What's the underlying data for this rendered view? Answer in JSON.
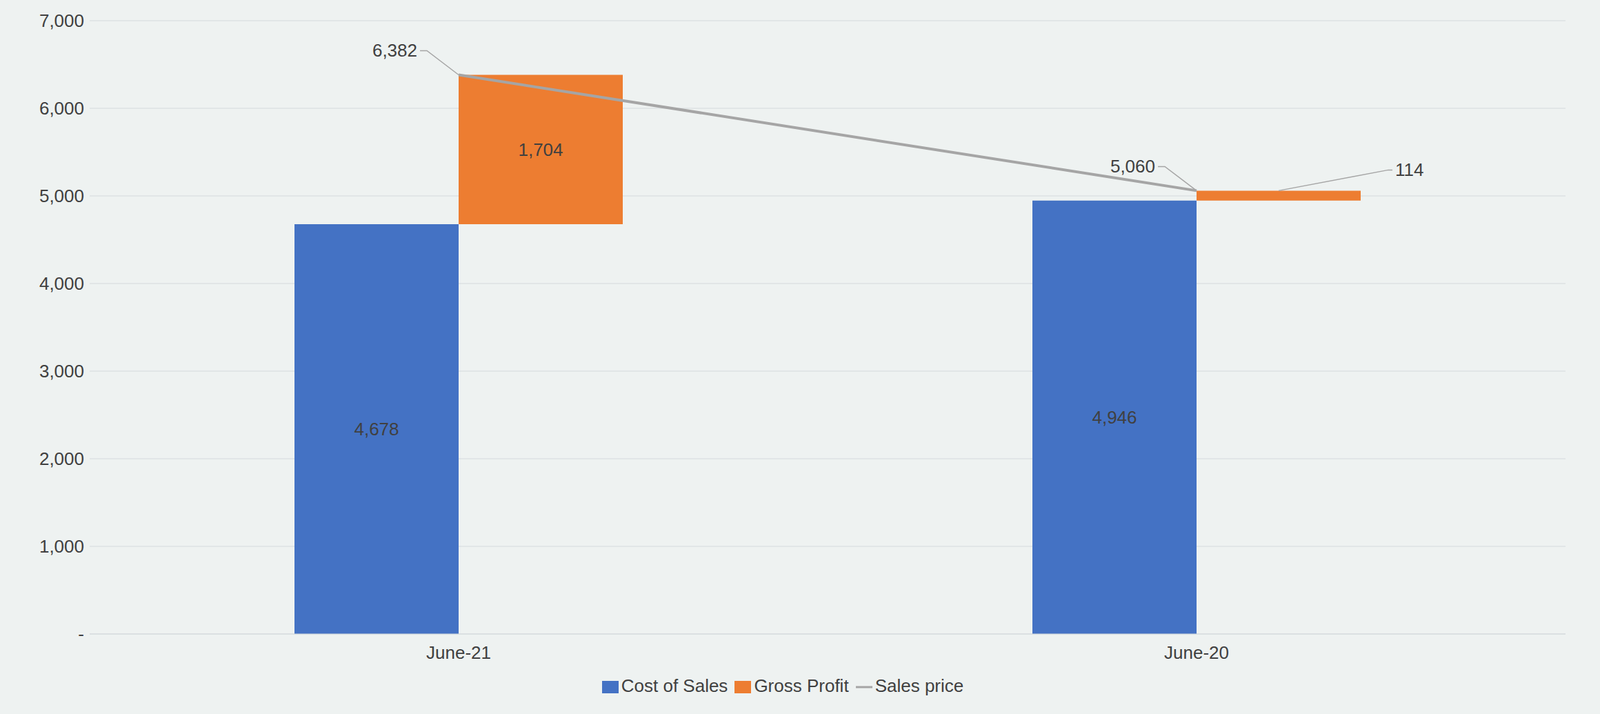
{
  "chart_data": {
    "type": "bar",
    "categories": [
      "June-21",
      "June-20"
    ],
    "stacked": true,
    "data_labels": true,
    "grid": true,
    "legend": "bottom",
    "ylim": [
      0,
      7000
    ],
    "yticks": [
      {
        "value": 0,
        "label": "-"
      },
      {
        "value": 1000,
        "label": "1,000"
      },
      {
        "value": 2000,
        "label": "2,000"
      },
      {
        "value": 3000,
        "label": "3,000"
      },
      {
        "value": 4000,
        "label": "4,000"
      },
      {
        "value": 5000,
        "label": "5,000"
      },
      {
        "value": 6000,
        "label": "6,000"
      },
      {
        "value": 7000,
        "label": "7,000"
      }
    ],
    "series": [
      {
        "name": "Cost of Sales",
        "color": "#4472c4",
        "values": [
          4678,
          4946
        ],
        "value_labels": [
          "4,678",
          "4,946"
        ]
      },
      {
        "name": "Gross Profit",
        "color": "#ed7d31",
        "values": [
          1704,
          114
        ],
        "value_labels": [
          "1,704",
          "114"
        ]
      },
      {
        "name": "Sales price",
        "type": "line",
        "color": "#a5a5a5",
        "values": [
          6382,
          5060
        ],
        "value_labels": [
          "6,382",
          "5,060"
        ]
      }
    ]
  }
}
